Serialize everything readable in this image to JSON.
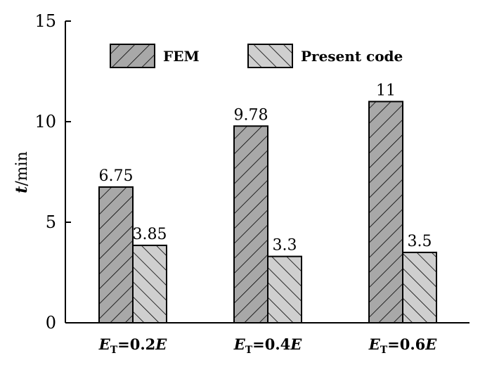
{
  "chart_data": {
    "type": "bar",
    "ylabel_symbol": "t",
    "ylabel_unit": "/min",
    "ylim": [
      0,
      15
    ],
    "yticks": [
      "0",
      "5",
      "10",
      "15"
    ],
    "categories": [
      {
        "main": "E",
        "sub": "T",
        "eq": "=0.2",
        "end": "E"
      },
      {
        "main": "E",
        "sub": "T",
        "eq": "=0.4",
        "end": "E"
      },
      {
        "main": "E",
        "sub": "T",
        "eq": "=0.6",
        "end": "E"
      }
    ],
    "series": [
      {
        "name": "FEM",
        "values": [
          6.75,
          9.78,
          11
        ],
        "labels": [
          "6.75",
          "9.78",
          "11"
        ],
        "color": "#a8a8a8",
        "hatch": "forward"
      },
      {
        "name": "Present code",
        "values": [
          3.85,
          3.3,
          3.5
        ],
        "labels": [
          "3.85",
          "3.3",
          "3.5"
        ],
        "color": "#cfcfcf",
        "hatch": "backward"
      }
    ],
    "legend_position": "top",
    "grid": false
  }
}
